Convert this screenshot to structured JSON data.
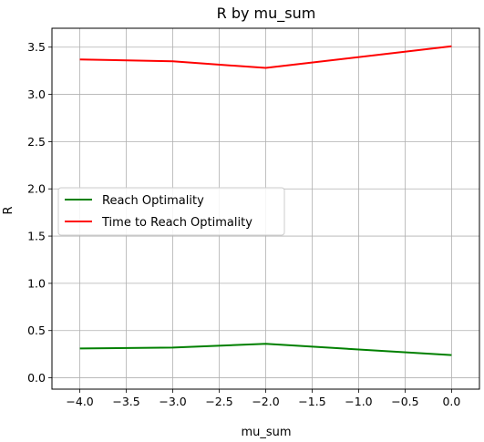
{
  "chart_data": {
    "type": "line",
    "title": "R by mu_sum",
    "xlabel": "mu_sum",
    "ylabel": "R",
    "x": [
      -4.0,
      -3.0,
      -2.0,
      0.0
    ],
    "xlim": [
      -4.3,
      0.3
    ],
    "ylim": [
      -0.12,
      3.7
    ],
    "xticks": [
      "−4.0",
      "−3.5",
      "−3.0",
      "−2.5",
      "−2.0",
      "−1.5",
      "−1.0",
      "−0.5",
      "0.0"
    ],
    "xtick_values": [
      -4.0,
      -3.5,
      -3.0,
      -2.5,
      -2.0,
      -1.5,
      -1.0,
      -0.5,
      0.0
    ],
    "yticks": [
      "0.0",
      "0.5",
      "1.0",
      "1.5",
      "2.0",
      "2.5",
      "3.0",
      "3.5"
    ],
    "ytick_values": [
      0.0,
      0.5,
      1.0,
      1.5,
      2.0,
      2.5,
      3.0,
      3.5
    ],
    "grid": true,
    "legend_position": "center-left",
    "series": [
      {
        "name": "Reach Optimality",
        "color": "#008000",
        "values": [
          0.31,
          0.32,
          0.36,
          0.24
        ]
      },
      {
        "name": "Time to Reach Optimality",
        "color": "#ff0000",
        "values": [
          3.37,
          3.35,
          3.28,
          3.51
        ]
      }
    ]
  }
}
